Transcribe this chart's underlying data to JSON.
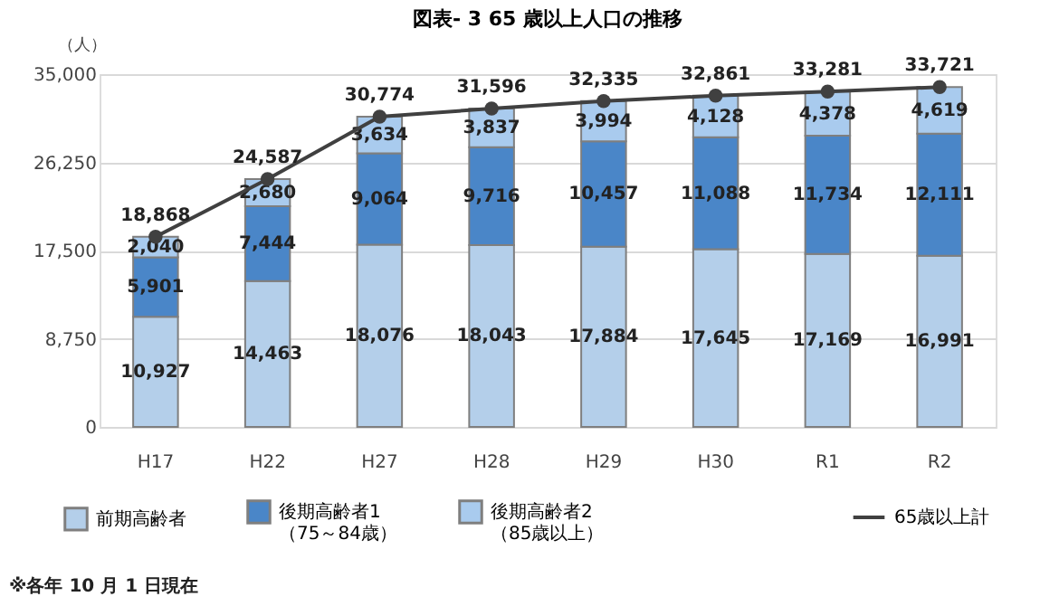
{
  "chart_data": {
    "type": "bar",
    "title": "図表- 3  65 歳以上人口の推移",
    "ylabel": "（人）",
    "stacked": true,
    "grid": "y",
    "legend": "bottom",
    "categories": [
      "H17",
      "H22",
      "H27",
      "H28",
      "H29",
      "H30",
      "R1",
      "R2"
    ],
    "ylim": [
      0,
      35000
    ],
    "yticks": [
      {
        "value": 0,
        "label": "0"
      },
      {
        "value": 8750,
        "label": "8,750"
      },
      {
        "value": 17500,
        "label": "17,500"
      },
      {
        "value": 26250,
        "label": "26,250"
      },
      {
        "value": 35000,
        "label": "35,000"
      }
    ],
    "series": [
      {
        "name": "前期高齢者",
        "color": "#b4cfea",
        "values": [
          10927,
          14463,
          18076,
          18043,
          17884,
          17645,
          17169,
          16991
        ],
        "value_labels": [
          "10,927",
          "14,463",
          "18,076",
          "18,043",
          "17,884",
          "17,645",
          "17,169",
          "16,991"
        ]
      },
      {
        "name": "後期高齢者1（75～84歳）",
        "color": "#4a86c8",
        "values": [
          5901,
          7444,
          9064,
          9716,
          10457,
          11088,
          11734,
          12111
        ],
        "value_labels": [
          "5,901",
          "7,444",
          "9,064",
          "9,716",
          "10,457",
          "11,088",
          "11,734",
          "12,111"
        ]
      },
      {
        "name": "後期高齢者2（85歳以上）",
        "color": "#a9cbee",
        "values": [
          2040,
          2680,
          3634,
          3837,
          3994,
          4128,
          4378,
          4619
        ],
        "value_labels": [
          "2,040",
          "2,680",
          "3,634",
          "3,837",
          "3,994",
          "4,128",
          "4,378",
          "4,619"
        ]
      },
      {
        "name": "65歳以上計",
        "type": "line",
        "color": "#404040",
        "marker": "circle",
        "line_style": "solid",
        "values": [
          18868,
          24587,
          30774,
          31596,
          32335,
          32861,
          33281,
          33721
        ],
        "value_labels": [
          "18,868",
          "24,587",
          "30,774",
          "31,596",
          "32,335",
          "32,861",
          "33,281",
          "33,721"
        ]
      }
    ],
    "annotations": [
      "※各年 10 月 1 日現在"
    ]
  }
}
